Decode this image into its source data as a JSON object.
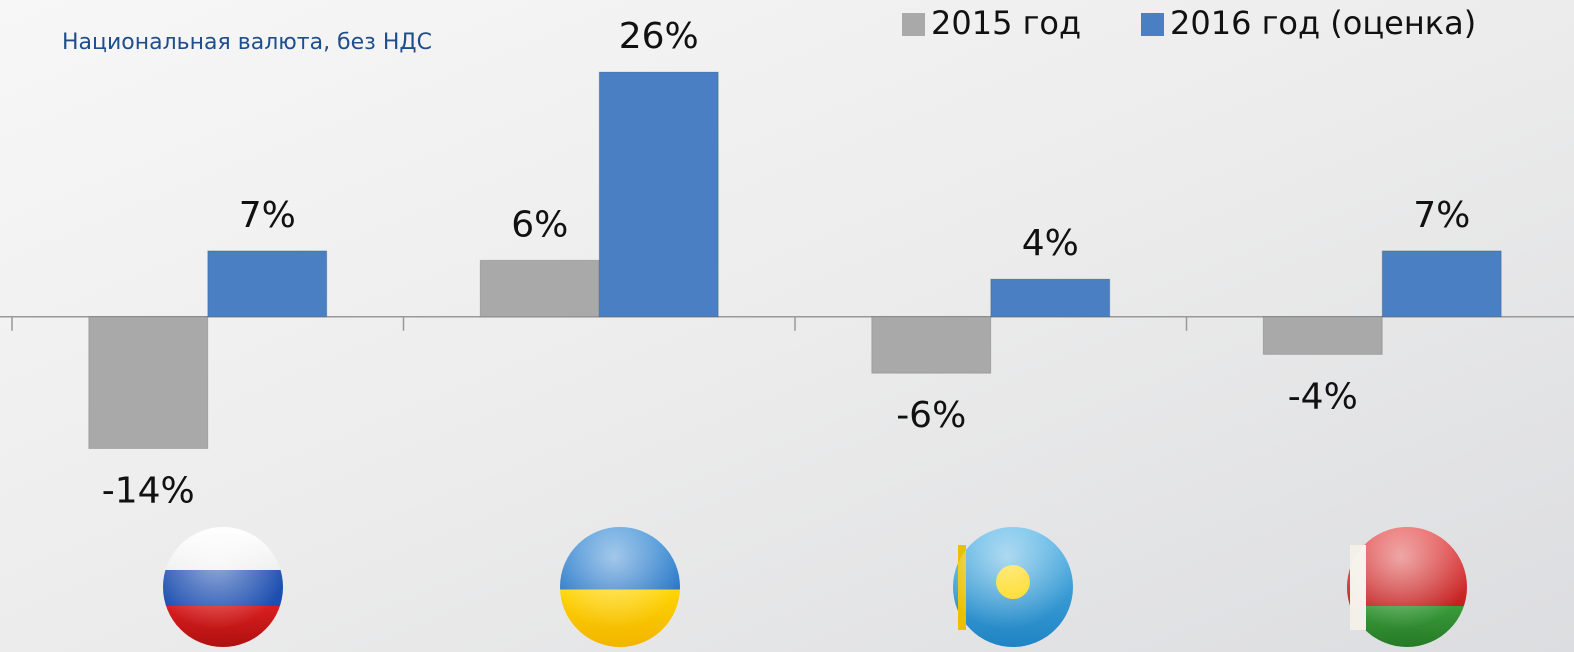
{
  "chart_data": {
    "type": "bar",
    "subtitle": "Национальная валюта, без НДС",
    "categories": [
      null,
      null,
      null,
      null
    ],
    "series": [
      {
        "name": "2015 год",
        "color": "#a9a9a9",
        "values": [
          -14,
          6,
          -6,
          -4
        ],
        "value_labels": [
          "-14%",
          "6%",
          "-6%",
          "-4%"
        ]
      },
      {
        "name": "2016 год (оценка)",
        "color": "#4a7fc4",
        "values": [
          7,
          26,
          4,
          7
        ],
        "value_labels": [
          "7%",
          "26%",
          "4%",
          "7%"
        ]
      }
    ],
    "ylim": [
      -20,
      30
    ],
    "legend": "top-right"
  }
}
